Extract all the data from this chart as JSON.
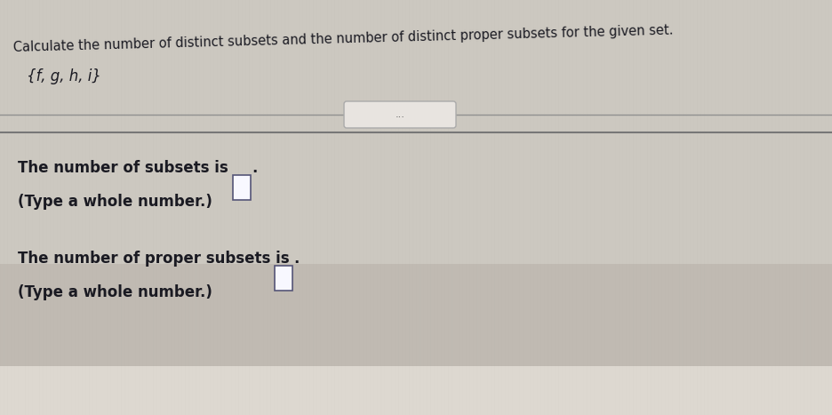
{
  "bg_color_main": "#b8b0a8",
  "bg_color_top": "#ccc8c0",
  "bg_color_bottom": "#d0ccc4",
  "title_text": "Calculate the number of distinct subsets and the number of distinct proper subsets for the given set.",
  "set_text": "{f, g, h, i}",
  "line1_text": "The number of subsets is",
  "line2_text": "(Type a whole number.)",
  "line3_text": "The number of proper subsets is",
  "line4_text": "(Type a whole number.)",
  "dots_text": "...",
  "title_fontsize": 10.5,
  "set_fontsize": 12,
  "body_fontsize": 12,
  "text_color": "#1a1a22",
  "box_color": "#f8f8ff",
  "line_color": "#909090",
  "dots_bg": "#e8e4e0"
}
